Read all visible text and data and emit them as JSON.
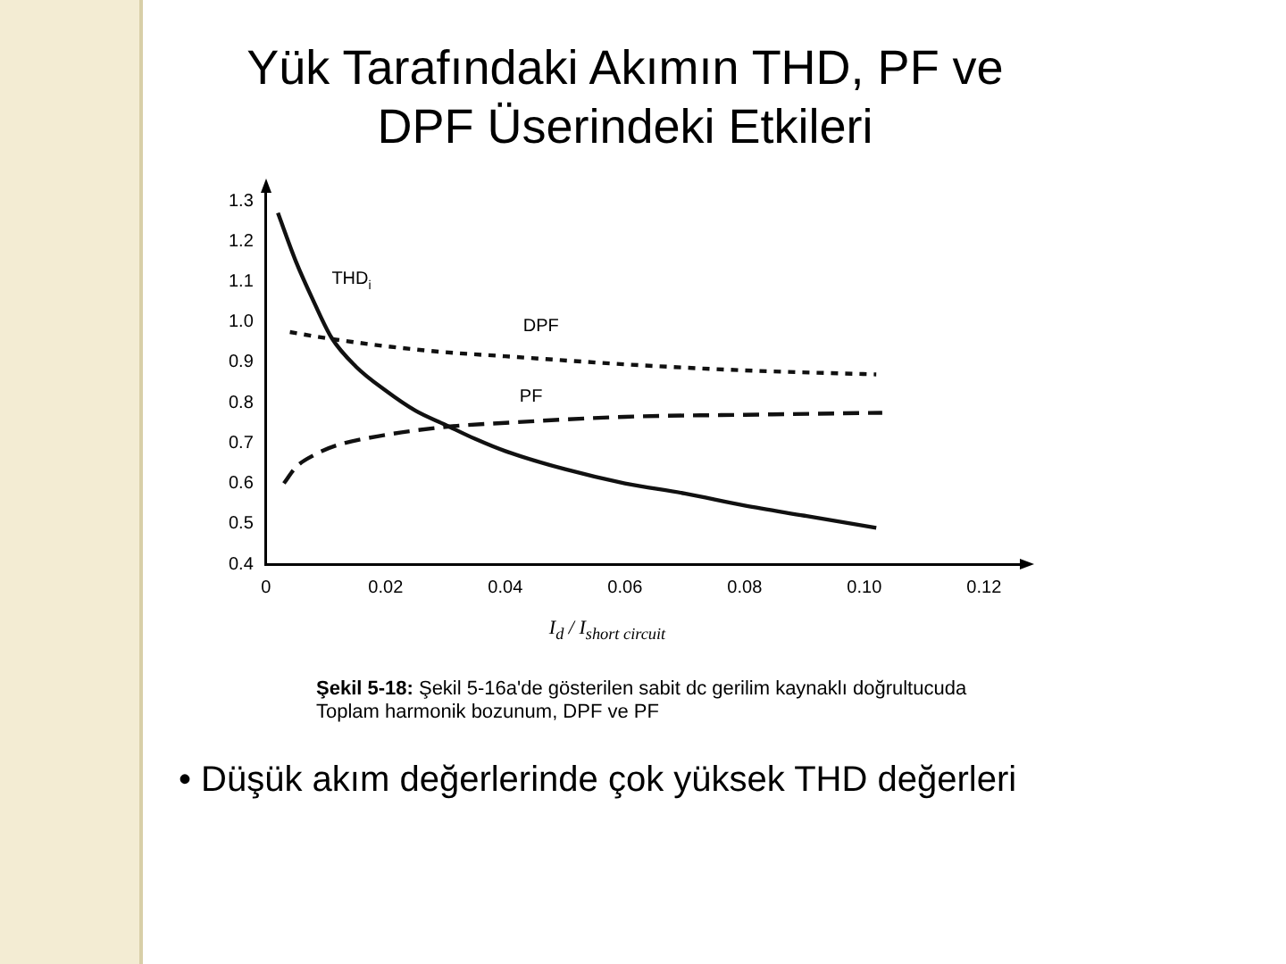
{
  "chart_data": {
    "type": "line",
    "title": "Yük Tarafındaki Akımın THD, PF ve DPF Üserindeki Etkileri",
    "xlabel": "I$_{d}$ / I$_{short circuit}$",
    "xlim": [
      0,
      0.126
    ],
    "xticks": [
      0,
      0.02,
      0.04,
      0.06,
      0.08,
      {
        "value": 0.1,
        "label": "0.10"
      },
      0.12
    ],
    "ylim": [
      0.4,
      1.32
    ],
    "yticks": [
      0.4,
      0.5,
      0.6,
      0.7,
      0.8,
      0.9,
      {
        "value": 1,
        "label": "1.0"
      },
      1.1,
      1.2,
      1.3
    ],
    "grid": false,
    "legend": false,
    "marker": "none",
    "series": [
      {
        "name": "THD$_{i}$",
        "color": "#111111",
        "line_style": "solid",
        "x": [
          0.002,
          0.005,
          0.008,
          0.011,
          0.015,
          0.02,
          0.025,
          0.03,
          0.035,
          0.04,
          0.05,
          0.06,
          0.07,
          0.08,
          0.09,
          0.102
        ],
        "values": [
          1.27,
          1.15,
          1.05,
          0.96,
          0.89,
          0.83,
          0.78,
          0.745,
          0.71,
          0.68,
          0.635,
          0.6,
          0.575,
          0.545,
          0.52,
          0.49
        ]
      },
      {
        "name": "DPF",
        "color": "#111111",
        "line_style": "dotted",
        "x": [
          0.004,
          0.01,
          0.02,
          0.03,
          0.04,
          0.06,
          0.08,
          0.102
        ],
        "values": [
          0.975,
          0.96,
          0.94,
          0.925,
          0.915,
          0.895,
          0.88,
          0.87
        ]
      },
      {
        "name": "PF",
        "color": "#111111",
        "line_style": "dashed",
        "x": [
          0.003,
          0.005,
          0.008,
          0.012,
          0.02,
          0.03,
          0.04,
          0.06,
          0.08,
          0.103
        ],
        "values": [
          0.6,
          0.64,
          0.67,
          0.695,
          0.72,
          0.74,
          0.75,
          0.765,
          0.77,
          0.775
        ]
      }
    ],
    "annotations": [
      "Şekil 5-18: Şekil 5-16a'de gösterilen sabit dc gerilim kaynaklı doğrultucuda Toplam harmonik bozunum, DPF ve PF",
      "• Düşük akım değerlerinde çok yüksek THD değerleri"
    ]
  }
}
